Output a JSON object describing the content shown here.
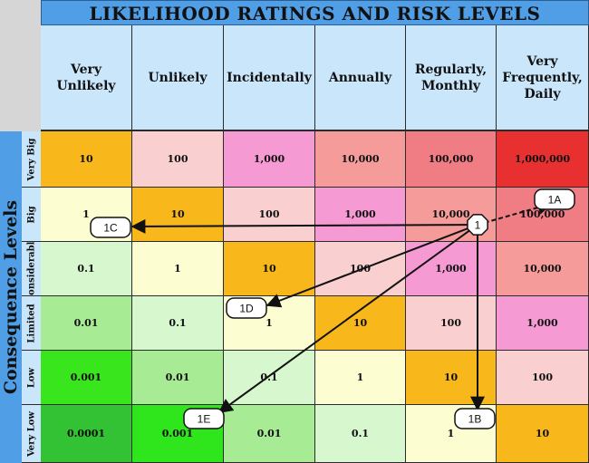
{
  "title": "LIKELIHOOD RATINGS AND RISK LEVELS",
  "y_axis_title": "Consequence Levels",
  "likelihood_levels": [
    "Very Unlikely",
    "Unlikely",
    "Incidentally",
    "Annually",
    "Regularly, Monthly",
    "Very Frequently, Daily"
  ],
  "consequence_levels": [
    "Very Big",
    "Big",
    "Considerable",
    "Limited",
    "Low",
    "Very Low"
  ],
  "matrix": [
    [
      "10",
      "100",
      "1,000",
      "10,000",
      "100,000",
      "1,000,000"
    ],
    [
      "1",
      "10",
      "100",
      "1,000",
      "10,000",
      "100,000"
    ],
    [
      "0.1",
      "1",
      "10",
      "100",
      "1,000",
      "10,000"
    ],
    [
      "0.01",
      "0.1",
      "1",
      "10",
      "100",
      "1,000"
    ],
    [
      "0.001",
      "0.01",
      "0.1",
      "1",
      "10",
      "100"
    ],
    [
      "0.0001",
      "0.001",
      "0.01",
      "0.1",
      "1",
      "10"
    ]
  ],
  "cell_colors": [
    [
      "#f8b81c",
      "#f9cfcf",
      "#f59ad3",
      "#f59c9a",
      "#f07c84",
      "#e83030"
    ],
    [
      "#fdfdd2",
      "#f8b81c",
      "#f9cfcf",
      "#f59ad3",
      "#f59c9a",
      "#f07c84"
    ],
    [
      "#d7f7cf",
      "#fdfdd2",
      "#f8b81c",
      "#f9cfcf",
      "#f59ad3",
      "#f59c9a"
    ],
    [
      "#a7ec95",
      "#d7f7cf",
      "#fdfdd2",
      "#f8b81c",
      "#f9cfcf",
      "#f59ad3"
    ],
    [
      "#39e61d",
      "#a7ec95",
      "#d7f7cf",
      "#fdfdd2",
      "#f8b81c",
      "#f9cfcf"
    ],
    [
      "#33c233",
      "#2fe61c",
      "#a7ec95",
      "#d7f7cf",
      "#fdfdd2",
      "#f8b81c"
    ]
  ],
  "header_color": "#c9e6fb",
  "title_color": "#4f9ee6",
  "annotations": {
    "origin": "1",
    "labels": [
      "1A",
      "1B",
      "1C",
      "1D",
      "1E"
    ]
  }
}
